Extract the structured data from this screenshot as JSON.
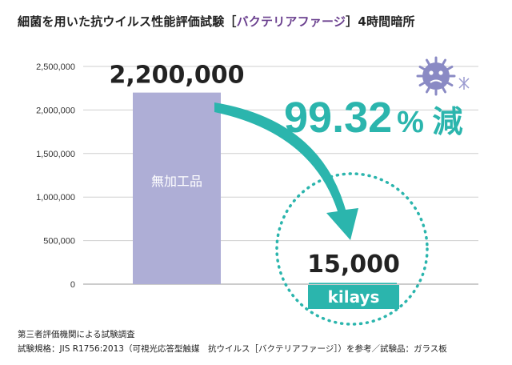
{
  "title": {
    "prefix": "細菌を用いた抗ウイルス性能評価試験［",
    "highlight": "バクテリアファージ",
    "suffix": "］4時間暗所"
  },
  "chart_data": {
    "type": "bar",
    "categories": [
      "無加工品",
      "kilays"
    ],
    "values": [
      2200000,
      15000
    ],
    "value_labels": [
      "2,200,000",
      "15,000"
    ],
    "yticks": [
      "0",
      "500,000",
      "1,000,000",
      "1,500,000",
      "2,000,000",
      "2,500,000"
    ],
    "ylim": [
      0,
      2500000
    ],
    "grid": true,
    "reduction_number": "99.32",
    "reduction_suffix": "% 減",
    "colors": {
      "bar": "#aeaed6",
      "teal": "#2bb5ad",
      "grid": "#cfcfcf",
      "virus": "#8a8ac4"
    }
  },
  "footnotes": {
    "line1": "第三者評価機関による試験調査",
    "line2": "試験規格：JIS R1756:2013（可視光応答型触媒　抗ウイルス［バクテリアファージ］）を参考／試験品：ガラス板"
  }
}
